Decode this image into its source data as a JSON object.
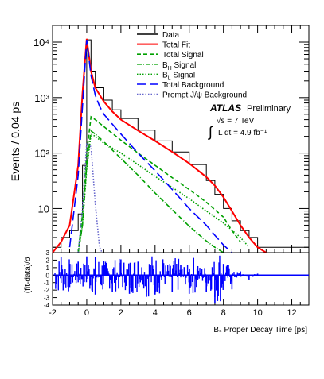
{
  "chart_data": [
    {
      "type": "line",
      "ylabel": "Events / 0.04 ps",
      "xlabel": "",
      "log_y": true,
      "xlim": [
        -2,
        13
      ],
      "ylim": [
        1.6,
        20000
      ],
      "grid": false,
      "legend_placement": "top-right",
      "y_ticks": [
        {
          "value": 10,
          "label": "10"
        },
        {
          "value": 100,
          "label": "10²"
        },
        {
          "value": 1000,
          "label": "10³"
        },
        {
          "value": 10000,
          "label": "10⁴"
        }
      ],
      "annotation": {
        "experiment": "ATLAS",
        "status": "Preliminary",
        "energy": "√s = 7 TeV",
        "luminosity": "L dt = 4.9 fb⁻¹"
      },
      "series": [
        {
          "name": "Data",
          "color": "#000000",
          "style": "histogram",
          "x": [
            -2.0,
            -1.5,
            -1.0,
            -0.5,
            -0.25,
            0.0,
            0.25,
            0.5,
            1.0,
            1.5,
            2.0,
            3.0,
            4.0,
            5.0,
            6.0,
            7.0,
            7.5,
            8.0,
            8.5,
            9.0,
            9.5,
            10.0,
            10.5,
            11.0,
            12.0,
            13.0
          ],
          "values": [
            2,
            3,
            4,
            8,
            60,
            11000,
            3000,
            1500,
            900,
            600,
            420,
            260,
            165,
            105,
            62,
            32,
            18,
            10,
            6,
            4,
            3,
            2,
            2,
            2,
            2,
            2
          ]
        },
        {
          "name": "Total Fit",
          "color": "#ff0000",
          "style": "solid",
          "x": [
            -2.0,
            -1.5,
            -1.0,
            -0.5,
            -0.25,
            0.0,
            0.25,
            0.5,
            1.0,
            1.5,
            2.0,
            3.0,
            4.0,
            5.0,
            6.0,
            7.0,
            7.5,
            8.0,
            8.5,
            9.0,
            9.5,
            10.0,
            10.5
          ],
          "values": [
            1.6,
            2.5,
            5,
            60,
            1200,
            11500,
            3000,
            1500,
            850,
            560,
            400,
            255,
            165,
            105,
            65,
            37,
            26,
            16,
            9,
            5,
            3,
            2,
            1.6
          ]
        },
        {
          "name": "Total Signal",
          "color": "#00a000",
          "style": "dashed",
          "x": [
            -0.5,
            -0.25,
            0.0,
            0.25,
            0.5,
            1.0,
            2.0,
            3.0,
            4.0,
            5.0,
            6.0,
            7.0,
            8.0,
            8.5,
            9.0
          ],
          "values": [
            1.6,
            8,
            100,
            450,
            400,
            300,
            170,
            100,
            60,
            36,
            22,
            13,
            7,
            4,
            2.5
          ]
        },
        {
          "name": "B_H Signal",
          "color": "#00a000",
          "style": "dashdot",
          "x": [
            -0.5,
            -0.25,
            0.0,
            0.25,
            0.5,
            1.0,
            2.0,
            3.0,
            4.0,
            5.0,
            6.0,
            7.0,
            7.5,
            8.0
          ],
          "values": [
            1.6,
            5,
            60,
            250,
            220,
            160,
            80,
            40,
            19,
            9.5,
            4.8,
            2.6,
            2,
            1.6
          ]
        },
        {
          "name": "B_L Signal",
          "color": "#00a000",
          "style": "dotted",
          "x": [
            -0.5,
            -0.25,
            0.0,
            0.25,
            0.5,
            1.0,
            2.0,
            3.0,
            4.0,
            5.0,
            6.0,
            7.0,
            8.0,
            9.0,
            9.5
          ],
          "values": [
            1.6,
            5,
            50,
            220,
            200,
            150,
            100,
            62,
            38,
            24,
            15,
            9,
            5.5,
            3,
            2
          ]
        },
        {
          "name": "Total Background",
          "color": "#0000ff",
          "style": "longdash",
          "x": [
            -1.0,
            -0.5,
            -0.25,
            0.0,
            0.25,
            0.5,
            0.75,
            1.0,
            2.0,
            3.0,
            4.0,
            5.0,
            6.0,
            7.0,
            7.5,
            8.0,
            8.5
          ],
          "values": [
            2,
            40,
            700,
            11000,
            2500,
            1100,
            700,
            500,
            220,
            100,
            48,
            22,
            10,
            5,
            3.3,
            2.2,
            1.6
          ]
        },
        {
          "name": "Prompt J/ψ Background",
          "color": "#6666cc",
          "style": "dotted",
          "x": [
            -0.5,
            -0.25,
            0.0,
            0.25,
            0.5,
            0.75,
            0.9
          ],
          "values": [
            1.6,
            10,
            150,
            130,
            12,
            2,
            1.6
          ]
        }
      ]
    },
    {
      "type": "bar",
      "ylabel": "(fit-data)/σ",
      "xlabel": "Bₛ Proper Decay Time [ps]",
      "xlim": [
        -2,
        13
      ],
      "ylim": [
        -4,
        3
      ],
      "y_ticks": [
        -4,
        -3,
        -2,
        -1,
        0,
        1,
        2,
        3
      ],
      "x_ticks": [
        -2,
        0,
        2,
        4,
        6,
        8,
        10,
        12
      ],
      "color": "#0000ff",
      "x": [
        -1.5,
        -1.0,
        -0.5,
        0.0,
        0.5,
        1.0,
        1.5,
        2.0,
        2.5,
        3.0,
        3.5,
        4.0,
        4.5,
        5.0,
        5.5,
        6.0,
        6.5,
        7.0,
        7.5,
        8.0,
        8.5,
        9.0,
        9.5,
        10.0
      ],
      "values": [
        2.4,
        -1.6,
        1.8,
        2.5,
        -2.6,
        1.9,
        -2.2,
        2.1,
        -2.5,
        1.8,
        -2.9,
        -2.6,
        1.6,
        -2.3,
        1.4,
        -2.5,
        1.2,
        -2.2,
        -3.7,
        1.5,
        -1.9,
        0.5,
        -0.6,
        0.2
      ]
    }
  ],
  "legend": {
    "items": [
      {
        "label": "Data",
        "color": "#000000",
        "style": "solid"
      },
      {
        "label": "Total Fit",
        "color": "#ff0000",
        "style": "solid"
      },
      {
        "label": "Total Signal",
        "color": "#00a000",
        "style": "dashed"
      },
      {
        "label": "B",
        "sub": "H",
        "tail": " Signal",
        "color": "#00a000",
        "style": "dashdot"
      },
      {
        "label": "B",
        "sub": "L",
        "tail": " Signal",
        "color": "#00a000",
        "style": "dotted"
      },
      {
        "label": "Total Background",
        "color": "#0000ff",
        "style": "longdash"
      },
      {
        "label": "Prompt J/ψ Background",
        "color": "#6666cc",
        "style": "dotted"
      }
    ]
  }
}
